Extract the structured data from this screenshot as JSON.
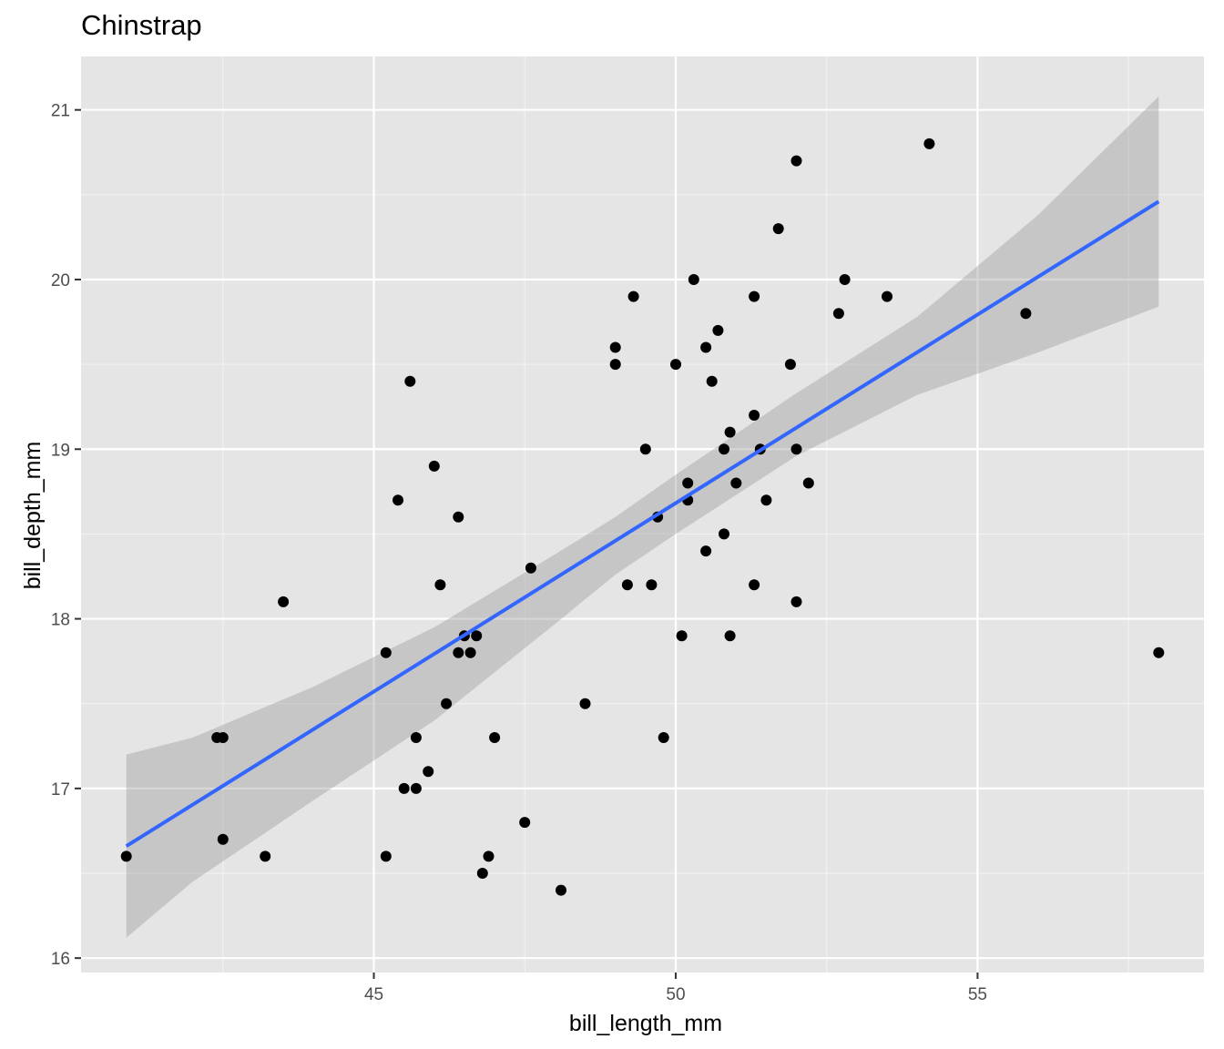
{
  "chart_data": {
    "type": "scatter",
    "title": "Chinstrap",
    "xlabel": "bill_length_mm",
    "ylabel": "bill_depth_mm",
    "xlim": [
      40.15,
      58.75
    ],
    "ylim": [
      15.915,
      21.315
    ],
    "x_ticks": [
      45,
      50,
      55
    ],
    "x_tick_labels": [
      "45",
      "50",
      "55"
    ],
    "y_ticks": [
      16,
      17,
      18,
      19,
      20,
      21
    ],
    "y_tick_labels": [
      "16",
      "17",
      "18",
      "19",
      "20",
      "21"
    ],
    "grid": true,
    "points": [
      [
        46.5,
        17.9
      ],
      [
        50.0,
        19.5
      ],
      [
        51.3,
        19.2
      ],
      [
        45.4,
        18.7
      ],
      [
        52.7,
        19.8
      ],
      [
        45.2,
        17.8
      ],
      [
        46.1,
        18.2
      ],
      [
        51.3,
        18.2
      ],
      [
        46.0,
        18.9
      ],
      [
        51.3,
        19.9
      ],
      [
        46.6,
        17.8
      ],
      [
        51.7,
        20.3
      ],
      [
        47.0,
        17.3
      ],
      [
        52.0,
        18.1
      ],
      [
        45.9,
        17.1
      ],
      [
        50.5,
        19.6
      ],
      [
        50.3,
        20.0
      ],
      [
        58.0,
        17.8
      ],
      [
        46.4,
        18.6
      ],
      [
        49.2,
        18.2
      ],
      [
        42.4,
        17.3
      ],
      [
        48.5,
        17.5
      ],
      [
        43.2,
        16.6
      ],
      [
        50.6,
        19.4
      ],
      [
        46.7,
        17.9
      ],
      [
        52.0,
        19.0
      ],
      [
        50.5,
        18.4
      ],
      [
        49.5,
        19.0
      ],
      [
        46.4,
        17.8
      ],
      [
        52.8,
        20.0
      ],
      [
        40.9,
        16.6
      ],
      [
        54.2,
        20.8
      ],
      [
        42.5,
        16.7
      ],
      [
        51.0,
        18.8
      ],
      [
        49.7,
        18.6
      ],
      [
        47.5,
        16.8
      ],
      [
        47.6,
        18.3
      ],
      [
        52.0,
        20.7
      ],
      [
        46.9,
        16.6
      ],
      [
        53.5,
        19.9
      ],
      [
        49.0,
        19.5
      ],
      [
        46.2,
        17.5
      ],
      [
        50.9,
        19.1
      ],
      [
        45.5,
        17.0
      ],
      [
        50.9,
        17.9
      ],
      [
        50.8,
        18.5
      ],
      [
        50.1,
        17.9
      ],
      [
        49.0,
        19.6
      ],
      [
        51.5,
        18.7
      ],
      [
        49.8,
        17.3
      ],
      [
        48.1,
        16.4
      ],
      [
        51.4,
        19.0
      ],
      [
        45.7,
        17.3
      ],
      [
        50.7,
        19.7
      ],
      [
        42.5,
        17.3
      ],
      [
        52.2,
        18.8
      ],
      [
        45.2,
        16.6
      ],
      [
        49.3,
        19.9
      ],
      [
        50.2,
        18.8
      ],
      [
        45.6,
        19.4
      ],
      [
        51.9,
        19.5
      ],
      [
        46.8,
        16.5
      ],
      [
        45.7,
        17.0
      ],
      [
        55.8,
        19.8
      ],
      [
        43.5,
        18.1
      ],
      [
        49.6,
        18.2
      ],
      [
        50.8,
        19.0
      ],
      [
        50.2,
        18.7
      ]
    ],
    "fit_line": {
      "x": [
        40.9,
        58.0
      ],
      "y": [
        16.66,
        20.46
      ]
    },
    "confidence_band": {
      "x": [
        40.9,
        42.0,
        44.0,
        46.0,
        48.0,
        49.0,
        50.0,
        52.0,
        54.0,
        56.0,
        58.0
      ],
      "upper": [
        17.2,
        17.3,
        17.6,
        17.95,
        18.38,
        18.6,
        18.85,
        19.33,
        19.78,
        20.38,
        21.08
      ],
      "lower": [
        16.12,
        16.45,
        16.93,
        17.4,
        17.97,
        18.26,
        18.5,
        18.96,
        19.32,
        19.57,
        19.84
      ]
    },
    "colors": {
      "panel_background": "#e5e5e5",
      "grid_major": "#ffffff",
      "grid_minor": "#f2f2f2",
      "points": "#000000",
      "fit_line": "#3366ff",
      "confidence_band": "#999999",
      "tick_label": "#4d4d4d",
      "tick_mark": "#333333"
    }
  }
}
